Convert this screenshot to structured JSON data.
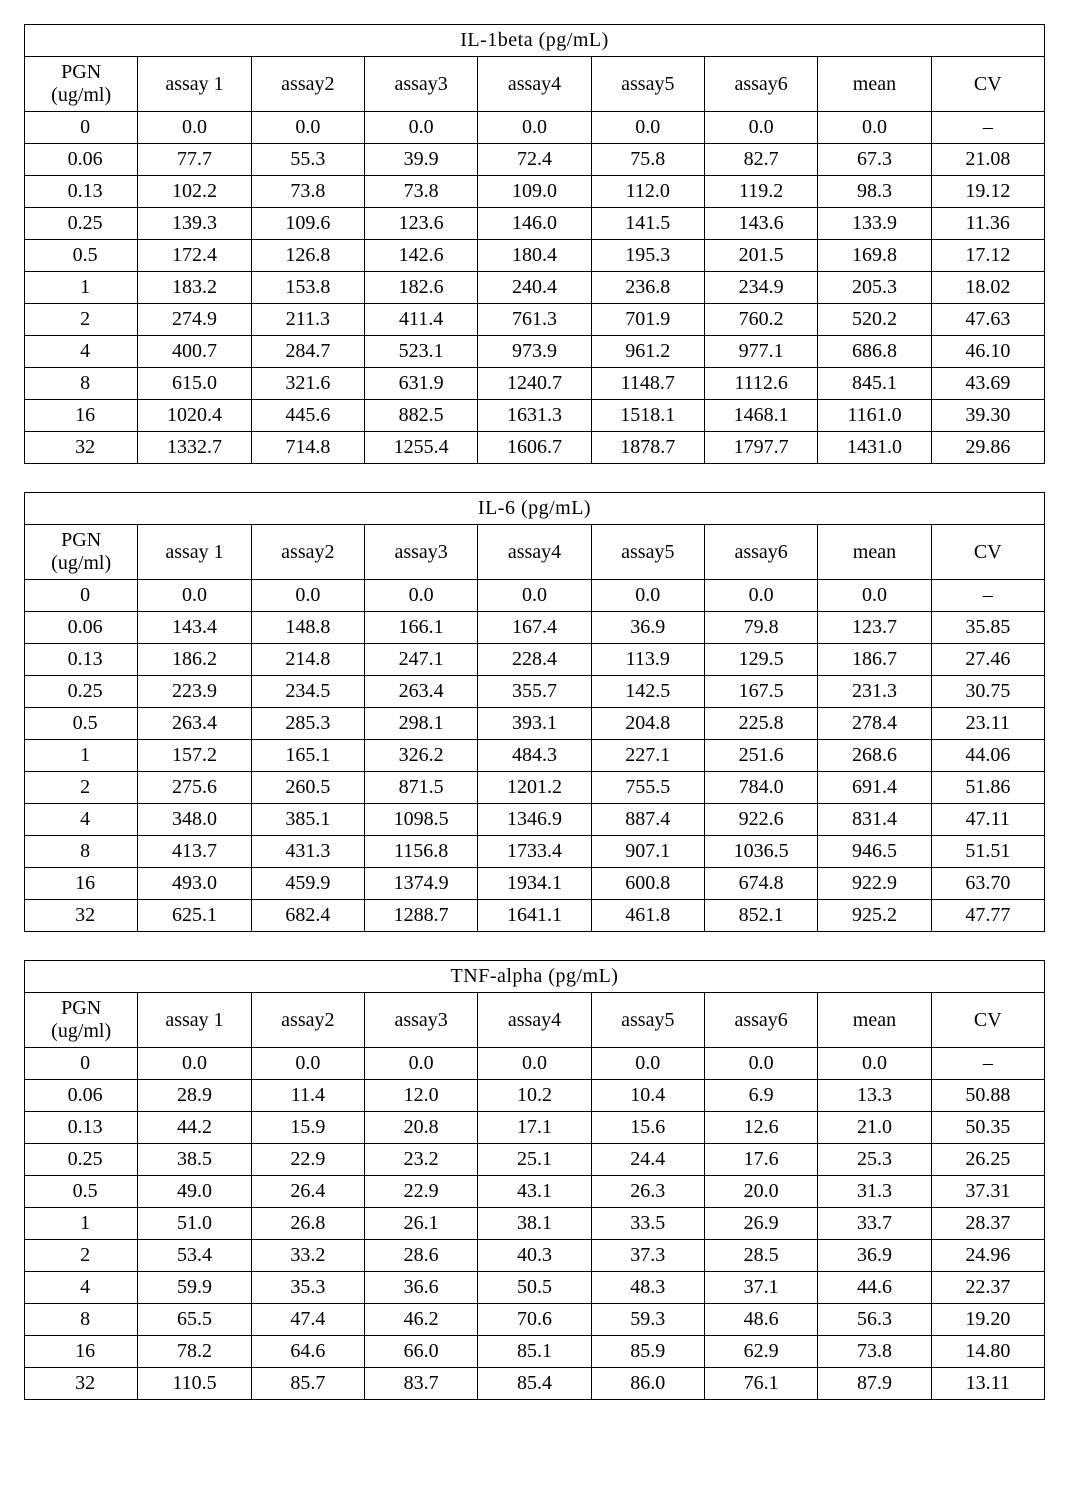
{
  "colors": {
    "background": "#ffffff",
    "text": "#000000",
    "border": "#000000"
  },
  "typography": {
    "font_family": "Times New Roman",
    "base_fontsize_pt": 15
  },
  "tables": [
    {
      "title": "IL-1beta  (pg/mL)",
      "columns": [
        "PGN (ug/ml)",
        "assay 1",
        "assay2",
        "assay3",
        "assay4",
        "assay5",
        "assay6",
        "mean",
        "CV"
      ],
      "rows": [
        [
          "0",
          "0.0",
          "0.0",
          "0.0",
          "0.0",
          "0.0",
          "0.0",
          "0.0",
          "–"
        ],
        [
          "0.06",
          "77.7",
          "55.3",
          "39.9",
          "72.4",
          "75.8",
          "82.7",
          "67.3",
          "21.08"
        ],
        [
          "0.13",
          "102.2",
          "73.8",
          "73.8",
          "109.0",
          "112.0",
          "119.2",
          "98.3",
          "19.12"
        ],
        [
          "0.25",
          "139.3",
          "109.6",
          "123.6",
          "146.0",
          "141.5",
          "143.6",
          "133.9",
          "11.36"
        ],
        [
          "0.5",
          "172.4",
          "126.8",
          "142.6",
          "180.4",
          "195.3",
          "201.5",
          "169.8",
          "17.12"
        ],
        [
          "1",
          "183.2",
          "153.8",
          "182.6",
          "240.4",
          "236.8",
          "234.9",
          "205.3",
          "18.02"
        ],
        [
          "2",
          "274.9",
          "211.3",
          "411.4",
          "761.3",
          "701.9",
          "760.2",
          "520.2",
          "47.63"
        ],
        [
          "4",
          "400.7",
          "284.7",
          "523.1",
          "973.9",
          "961.2",
          "977.1",
          "686.8",
          "46.10"
        ],
        [
          "8",
          "615.0",
          "321.6",
          "631.9",
          "1240.7",
          "1148.7",
          "1112.6",
          "845.1",
          "43.69"
        ],
        [
          "16",
          "1020.4",
          "445.6",
          "882.5",
          "1631.3",
          "1518.1",
          "1468.1",
          "1161.0",
          "39.30"
        ],
        [
          "32",
          "1332.7",
          "714.8",
          "1255.4",
          "1606.7",
          "1878.7",
          "1797.7",
          "1431.0",
          "29.86"
        ]
      ]
    },
    {
      "title": "IL-6 (pg/mL)",
      "columns": [
        "PGN (ug/ml)",
        "assay 1",
        "assay2",
        "assay3",
        "assay4",
        "assay5",
        "assay6",
        "mean",
        "CV"
      ],
      "rows": [
        [
          "0",
          "0.0",
          "0.0",
          "0.0",
          "0.0",
          "0.0",
          "0.0",
          "0.0",
          "–"
        ],
        [
          "0.06",
          "143.4",
          "148.8",
          "166.1",
          "167.4",
          "36.9",
          "79.8",
          "123.7",
          "35.85"
        ],
        [
          "0.13",
          "186.2",
          "214.8",
          "247.1",
          "228.4",
          "113.9",
          "129.5",
          "186.7",
          "27.46"
        ],
        [
          "0.25",
          "223.9",
          "234.5",
          "263.4",
          "355.7",
          "142.5",
          "167.5",
          "231.3",
          "30.75"
        ],
        [
          "0.5",
          "263.4",
          "285.3",
          "298.1",
          "393.1",
          "204.8",
          "225.8",
          "278.4",
          "23.11"
        ],
        [
          "1",
          "157.2",
          "165.1",
          "326.2",
          "484.3",
          "227.1",
          "251.6",
          "268.6",
          "44.06"
        ],
        [
          "2",
          "275.6",
          "260.5",
          "871.5",
          "1201.2",
          "755.5",
          "784.0",
          "691.4",
          "51.86"
        ],
        [
          "4",
          "348.0",
          "385.1",
          "1098.5",
          "1346.9",
          "887.4",
          "922.6",
          "831.4",
          "47.11"
        ],
        [
          "8",
          "413.7",
          "431.3",
          "1156.8",
          "1733.4",
          "907.1",
          "1036.5",
          "946.5",
          "51.51"
        ],
        [
          "16",
          "493.0",
          "459.9",
          "1374.9",
          "1934.1",
          "600.8",
          "674.8",
          "922.9",
          "63.70"
        ],
        [
          "32",
          "625.1",
          "682.4",
          "1288.7",
          "1641.1",
          "461.8",
          "852.1",
          "925.2",
          "47.77"
        ]
      ]
    },
    {
      "title": "TNF-alpha (pg/mL)",
      "columns": [
        "PGN (ug/ml)",
        "assay 1",
        "assay2",
        "assay3",
        "assay4",
        "assay5",
        "assay6",
        "mean",
        "CV"
      ],
      "rows": [
        [
          "0",
          "0.0",
          "0.0",
          "0.0",
          "0.0",
          "0.0",
          "0.0",
          "0.0",
          "–"
        ],
        [
          "0.06",
          "28.9",
          "11.4",
          "12.0",
          "10.2",
          "10.4",
          "6.9",
          "13.3",
          "50.88"
        ],
        [
          "0.13",
          "44.2",
          "15.9",
          "20.8",
          "17.1",
          "15.6",
          "12.6",
          "21.0",
          "50.35"
        ],
        [
          "0.25",
          "38.5",
          "22.9",
          "23.2",
          "25.1",
          "24.4",
          "17.6",
          "25.3",
          "26.25"
        ],
        [
          "0.5",
          "49.0",
          "26.4",
          "22.9",
          "43.1",
          "26.3",
          "20.0",
          "31.3",
          "37.31"
        ],
        [
          "1",
          "51.0",
          "26.8",
          "26.1",
          "38.1",
          "33.5",
          "26.9",
          "33.7",
          "28.37"
        ],
        [
          "2",
          "53.4",
          "33.2",
          "28.6",
          "40.3",
          "37.3",
          "28.5",
          "36.9",
          "24.96"
        ],
        [
          "4",
          "59.9",
          "35.3",
          "36.6",
          "50.5",
          "48.3",
          "37.1",
          "44.6",
          "22.37"
        ],
        [
          "8",
          "65.5",
          "47.4",
          "46.2",
          "70.6",
          "59.3",
          "48.6",
          "56.3",
          "19.20"
        ],
        [
          "16",
          "78.2",
          "64.6",
          "66.0",
          "85.1",
          "85.9",
          "62.9",
          "73.8",
          "14.80"
        ],
        [
          "32",
          "110.5",
          "85.7",
          "83.7",
          "85.4",
          "86.0",
          "76.1",
          "87.9",
          "13.11"
        ]
      ]
    }
  ]
}
